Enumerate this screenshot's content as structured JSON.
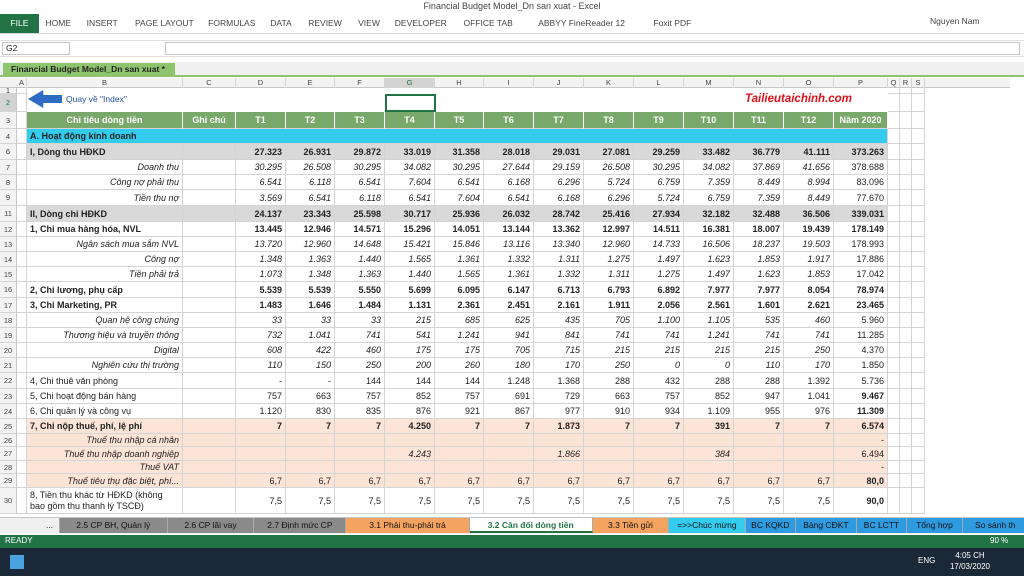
{
  "window": {
    "title": "Financial Budget Model_Dn san xuat - Excel",
    "user": "Nguyen Nam"
  },
  "ribbon_tabs": [
    "FILE",
    "HOME",
    "INSERT",
    "PAGE LAYOUT",
    "FORMULAS",
    "DATA",
    "REVIEW",
    "VIEW",
    "DEVELOPER",
    "OFFICE TAB",
    "ABBYY FineReader 12",
    "Foxit PDF"
  ],
  "name_box": "G2",
  "workbook_tab": "Financial Budget Model_Dn san xuat *",
  "columns": [
    "A",
    "B",
    "C",
    "D",
    "E",
    "F",
    "G",
    "H",
    "I",
    "J",
    "K",
    "L",
    "M",
    "N",
    "O",
    "P",
    "Q",
    "R",
    "S"
  ],
  "row_numbers": [
    "1",
    "2",
    "3",
    "4",
    "6",
    "7",
    "8",
    "9",
    "11",
    "12",
    "13",
    "14",
    "15",
    "16",
    "17",
    "18",
    "19",
    "20",
    "21",
    "22",
    "23",
    "24",
    "25",
    "26",
    "27",
    "28",
    "29",
    "30"
  ],
  "back_button": "Quay về \"Index\"",
  "site": "Tailieutaichinh.com",
  "header": {
    "label": "Chỉ tiêu dòng tiền",
    "note": "Ghi chú",
    "months": [
      "T1",
      "T2",
      "T3",
      "T4",
      "T5",
      "T6",
      "T7",
      "T8",
      "T9",
      "T10",
      "T11",
      "T12"
    ],
    "total": "Năm 2020"
  },
  "section": "A. Hoạt động kinh doanh",
  "rows": [
    {
      "label": "I, Dòng thu HĐKD",
      "values": [
        "27.323",
        "26.931",
        "29.872",
        "33.019",
        "31.358",
        "28.018",
        "29.031",
        "27.081",
        "29.259",
        "33.482",
        "36.779",
        "41.111",
        "373.263"
      ]
    },
    {
      "label": "Doanh thu",
      "values": [
        "30.295",
        "26.508",
        "30.295",
        "34.082",
        "30.295",
        "27.644",
        "29.159",
        "26.508",
        "30.295",
        "34.082",
        "37.869",
        "41.656",
        "378.688"
      ]
    },
    {
      "label": "Công nợ phải thu",
      "values": [
        "6.541",
        "6.118",
        "6.541",
        "7.604",
        "6.541",
        "6.168",
        "6.296",
        "5.724",
        "6.759",
        "7.359",
        "8.449",
        "8.994",
        "83.096"
      ]
    },
    {
      "label": "Tiền thu nợ",
      "values": [
        "3.569",
        "6.541",
        "6.118",
        "6.541",
        "7.604",
        "6.541",
        "6.168",
        "6.296",
        "5.724",
        "6.759",
        "7.359",
        "8.449",
        "77.670"
      ]
    },
    {
      "label": "II, Dòng chi HĐKD",
      "values": [
        "24.137",
        "23.343",
        "25.598",
        "30.717",
        "25.936",
        "26.032",
        "28.742",
        "25.416",
        "27.934",
        "32.182",
        "32.488",
        "36.506",
        "339.031"
      ]
    },
    {
      "label": "1, Chi mua hàng hóa, NVL",
      "values": [
        "13.445",
        "12.946",
        "14.571",
        "15.296",
        "14.051",
        "13.144",
        "13.362",
        "12.997",
        "14.511",
        "16.381",
        "18.007",
        "19.439",
        "178.149"
      ]
    },
    {
      "label": "Ngân sách mua sắm NVL",
      "values": [
        "13.720",
        "12.960",
        "14.648",
        "15.421",
        "15.846",
        "13.116",
        "13.340",
        "12.960",
        "14.733",
        "16.506",
        "18.237",
        "19.503",
        "178.993"
      ]
    },
    {
      "label": "Công nợ",
      "values": [
        "1.348",
        "1.363",
        "1.440",
        "1.565",
        "1.361",
        "1.332",
        "1.311",
        "1.275",
        "1.497",
        "1.623",
        "1.853",
        "1.917",
        "17.886"
      ]
    },
    {
      "label": "Tiền phải trả",
      "values": [
        "1.073",
        "1.348",
        "1.363",
        "1.440",
        "1.565",
        "1.361",
        "1.332",
        "1.311",
        "1.275",
        "1.497",
        "1.623",
        "1.853",
        "17.042"
      ]
    },
    {
      "label": "2, Chi lương, phụ cấp",
      "values": [
        "5.539",
        "5.539",
        "5.550",
        "5.699",
        "6.095",
        "6.147",
        "6.713",
        "6.793",
        "6.892",
        "7.977",
        "7.977",
        "8.054",
        "78.974"
      ]
    },
    {
      "label": "3, Chi Marketing, PR",
      "values": [
        "1.483",
        "1.646",
        "1.484",
        "1.131",
        "2.361",
        "2.451",
        "2.161",
        "1.911",
        "2.056",
        "2.561",
        "1.601",
        "2.621",
        "23.465"
      ]
    },
    {
      "label": "Quan hệ công chúng",
      "values": [
        "33",
        "33",
        "33",
        "215",
        "685",
        "625",
        "435",
        "705",
        "1.100",
        "1.105",
        "535",
        "460",
        "5.960"
      ]
    },
    {
      "label": "Thương hiệu và truyền thông",
      "values": [
        "732",
        "1.041",
        "741",
        "541",
        "1.241",
        "941",
        "841",
        "741",
        "741",
        "1.241",
        "741",
        "741",
        "11.285"
      ]
    },
    {
      "label": "Digital",
      "values": [
        "608",
        "422",
        "460",
        "175",
        "175",
        "705",
        "715",
        "215",
        "215",
        "215",
        "215",
        "250",
        "4.370"
      ]
    },
    {
      "label": "Nghiên cứu thị trường",
      "values": [
        "110",
        "150",
        "250",
        "200",
        "260",
        "180",
        "170",
        "250",
        "0",
        "0",
        "110",
        "170",
        "1.850"
      ]
    },
    {
      "label": "4, Chi thuê văn phòng",
      "values": [
        "-",
        "-",
        "144",
        "144",
        "144",
        "1.248",
        "1.368",
        "288",
        "432",
        "288",
        "288",
        "1.392",
        "5.736"
      ]
    },
    {
      "label": "5, Chi hoạt động bán hàng",
      "values": [
        "757",
        "663",
        "757",
        "852",
        "757",
        "691",
        "729",
        "663",
        "757",
        "852",
        "947",
        "1.041",
        "9.467"
      ]
    },
    {
      "label": "6, Chi quản lý và công vụ",
      "values": [
        "1.120",
        "830",
        "835",
        "876",
        "921",
        "867",
        "977",
        "910",
        "934",
        "1.109",
        "955",
        "976",
        "11.309"
      ]
    },
    {
      "label": "7, Chi nộp thuế, phí, lệ phí",
      "values": [
        "7",
        "7",
        "7",
        "4.250",
        "7",
        "7",
        "1.873",
        "7",
        "7",
        "391",
        "7",
        "7",
        "6.574"
      ]
    },
    {
      "label": "Thuế thu nhập cá nhân",
      "values": [
        null,
        null,
        null,
        null,
        null,
        null,
        null,
        null,
        null,
        null,
        null,
        null,
        "-"
      ]
    },
    {
      "label": "Thuế thu nhập doanh nghiệp",
      "values": [
        null,
        null,
        null,
        "4.243",
        null,
        null,
        "1.866",
        null,
        null,
        "384",
        null,
        null,
        "6.494"
      ]
    },
    {
      "label": "Thuế VAT",
      "values": [
        null,
        null,
        null,
        null,
        null,
        null,
        null,
        null,
        null,
        null,
        null,
        null,
        "-"
      ]
    },
    {
      "label": "Thuế tiêu thụ đặc biệt, phí...",
      "values": [
        "6,7",
        "6,7",
        "6,7",
        "6,7",
        "6,7",
        "6,7",
        "6,7",
        "6,7",
        "6,7",
        "6,7",
        "6,7",
        "6,7",
        "80,0"
      ]
    },
    {
      "label": "8, Tiền thu khác từ HĐKD (không bao gồm thu thanh lý TSCĐ)",
      "values": [
        "7,5",
        "7,5",
        "7,5",
        "7,5",
        "7,5",
        "7,5",
        "7,5",
        "7,5",
        "7,5",
        "7,5",
        "7,5",
        "7,5",
        "90,0"
      ]
    }
  ],
  "sheet_tabs": [
    "...",
    "2.5 CP BH, Quản lý",
    "2.6 CP lãi vay",
    "2.7 Định mức CP",
    "3.1 Phải thu-phải trả",
    "3.2 Cân đối dòng tiền",
    "3.3 Tiền gửi",
    "=>>Chúc mừng",
    "BC KQKD",
    "Bảng CĐKT",
    "BC LCTT",
    "Tổng hợp",
    "So sánh th"
  ],
  "status": {
    "mode": "READY",
    "zoom": "90 %"
  },
  "taskbar": {
    "language": "ENG",
    "time": "4:05 CH",
    "date": "17/03/2020"
  }
}
